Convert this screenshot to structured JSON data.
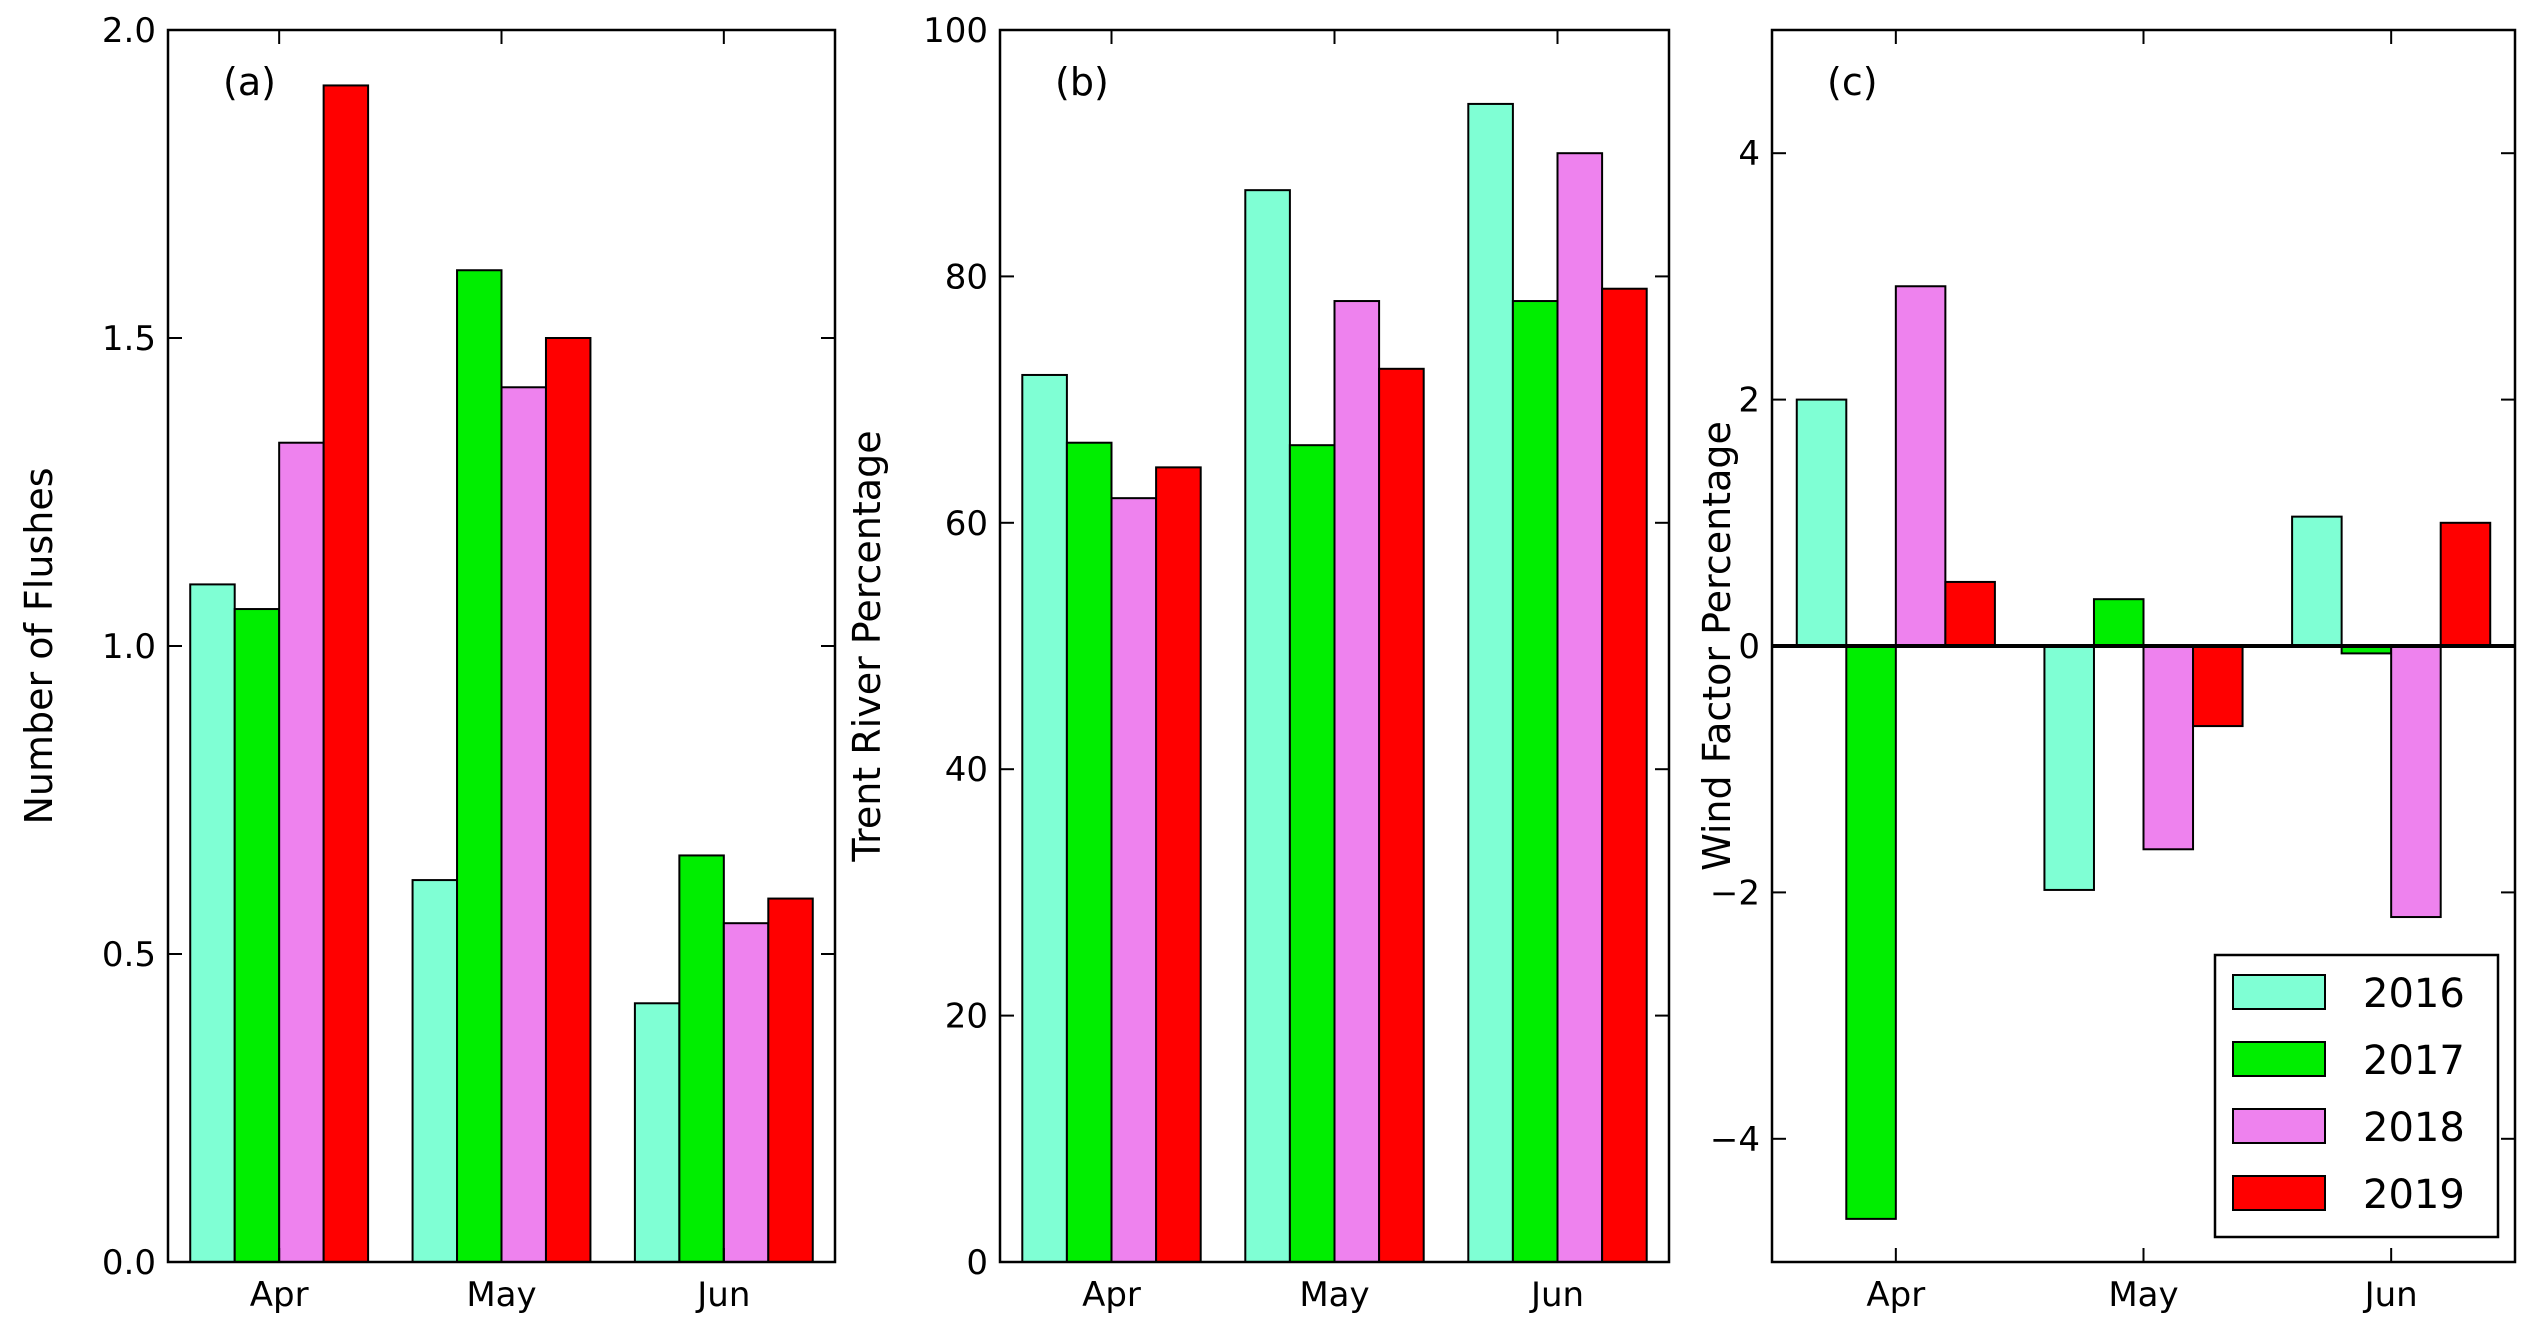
{
  "colors": {
    "2016": "#7fffd4",
    "2017": "#00ee00",
    "2018": "#ee82ee",
    "2019": "#ff0000"
  },
  "chart_data": [
    {
      "type": "bar",
      "panel_label": "(a)",
      "categories": [
        "Apr",
        "May",
        "Jun"
      ],
      "ylabel": "Number of Flushes",
      "xlabel": "",
      "ylim": [
        0,
        2.0
      ],
      "yticks": [
        0.0,
        0.5,
        1.0,
        1.5,
        2.0
      ],
      "ytick_labels": [
        "0.0",
        "0.5",
        "1.0",
        "1.5",
        "2.0"
      ],
      "series": [
        {
          "name": "2016",
          "values": [
            1.1,
            0.62,
            0.42
          ]
        },
        {
          "name": "2017",
          "values": [
            1.06,
            1.61,
            0.66
          ]
        },
        {
          "name": "2018",
          "values": [
            1.33,
            1.42,
            0.55
          ]
        },
        {
          "name": "2019",
          "values": [
            1.91,
            1.5,
            0.59
          ]
        }
      ]
    },
    {
      "type": "bar",
      "panel_label": "(b)",
      "categories": [
        "Apr",
        "May",
        "Jun"
      ],
      "ylabel": "Trent River Percentage",
      "xlabel": "",
      "ylim": [
        0,
        100
      ],
      "yticks": [
        0,
        20,
        40,
        60,
        80,
        100
      ],
      "ytick_labels": [
        "0",
        "20",
        "40",
        "60",
        "80",
        "100"
      ],
      "series": [
        {
          "name": "2016",
          "values": [
            72,
            87,
            94
          ]
        },
        {
          "name": "2017",
          "values": [
            66.5,
            66.3,
            78
          ]
        },
        {
          "name": "2018",
          "values": [
            62,
            78,
            90
          ]
        },
        {
          "name": "2019",
          "values": [
            64.5,
            72.5,
            79
          ]
        }
      ]
    },
    {
      "type": "bar",
      "panel_label": "(c)",
      "categories": [
        "Apr",
        "May",
        "Jun"
      ],
      "ylabel": "Wind Factor Percentage",
      "xlabel": "",
      "ylim": [
        -5,
        5
      ],
      "yticks": [
        -4,
        -2,
        0,
        2,
        4
      ],
      "ytick_labels": [
        "−4",
        "−2",
        "0",
        "2",
        "4"
      ],
      "zero_line": true,
      "series": [
        {
          "name": "2016",
          "values": [
            2.0,
            -1.98,
            1.05
          ]
        },
        {
          "name": "2017",
          "values": [
            -4.65,
            0.38,
            -0.06
          ]
        },
        {
          "name": "2018",
          "values": [
            2.92,
            -1.65,
            -2.2
          ]
        },
        {
          "name": "2019",
          "values": [
            0.52,
            -0.65,
            1.0
          ]
        }
      ],
      "legend": {
        "placement": "lower-right",
        "entries": [
          "2016",
          "2017",
          "2018",
          "2019"
        ]
      }
    }
  ]
}
